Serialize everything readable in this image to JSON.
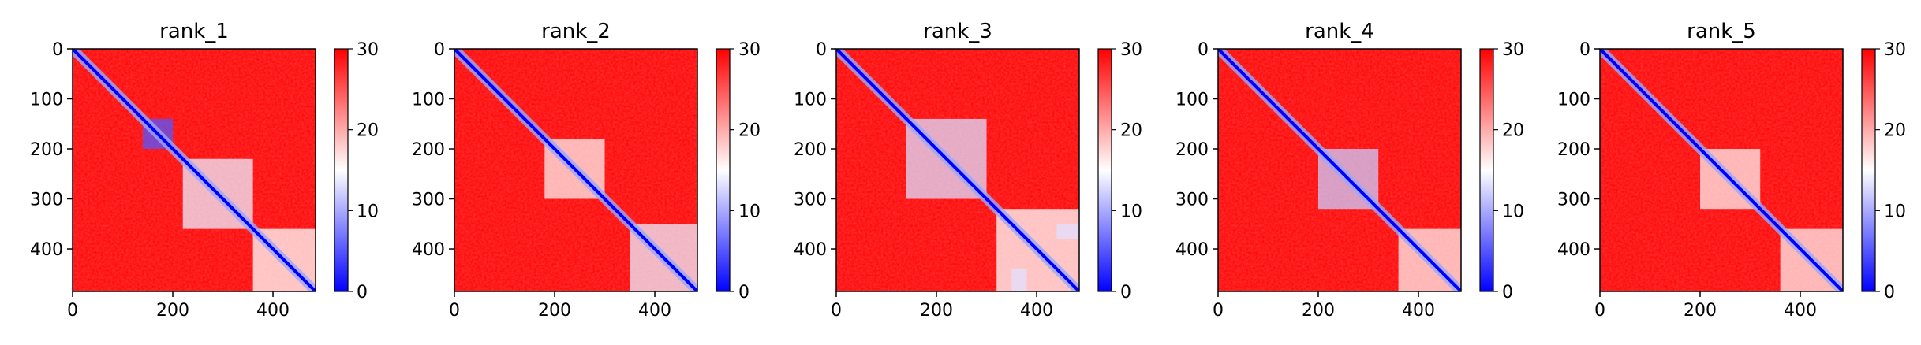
{
  "chart_data": [
    {
      "type": "heatmap",
      "title": "rank_1",
      "x_range": [
        0,
        485
      ],
      "y_range": [
        0,
        485
      ],
      "x_ticks": [
        0,
        200,
        400
      ],
      "y_ticks": [
        0,
        100,
        200,
        300,
        400
      ],
      "colorbar": {
        "range": [
          0,
          30
        ],
        "ticks": [
          0,
          10,
          20,
          30
        ],
        "colors": [
          "#0000ff",
          "#ffffff",
          "#ff0000"
        ]
      },
      "low_regions": [
        {
          "x": [
            140,
            200
          ],
          "y": [
            140,
            200
          ],
          "value": 5
        },
        {
          "x": [
            220,
            360
          ],
          "y": [
            220,
            360
          ],
          "value": 14
        },
        {
          "x": [
            360,
            485
          ],
          "y": [
            360,
            485
          ],
          "value": 15
        }
      ]
    },
    {
      "type": "heatmap",
      "title": "rank_2",
      "x_range": [
        0,
        485
      ],
      "y_range": [
        0,
        485
      ],
      "x_ticks": [
        0,
        200,
        400
      ],
      "y_ticks": [
        0,
        100,
        200,
        300,
        400
      ],
      "colorbar": {
        "range": [
          0,
          30
        ],
        "ticks": [
          0,
          10,
          20,
          30
        ],
        "colors": [
          "#0000ff",
          "#ffffff",
          "#ff0000"
        ]
      },
      "low_regions": [
        {
          "x": [
            180,
            300
          ],
          "y": [
            180,
            300
          ],
          "value": 16
        },
        {
          "x": [
            350,
            485
          ],
          "y": [
            350,
            485
          ],
          "value": 14
        }
      ]
    },
    {
      "type": "heatmap",
      "title": "rank_3",
      "x_range": [
        0,
        485
      ],
      "y_range": [
        0,
        485
      ],
      "x_ticks": [
        0,
        200,
        400
      ],
      "y_ticks": [
        0,
        100,
        200,
        300,
        400
      ],
      "colorbar": {
        "range": [
          0,
          30
        ],
        "ticks": [
          0,
          10,
          20,
          30
        ],
        "colors": [
          "#0000ff",
          "#ffffff",
          "#ff0000"
        ]
      },
      "low_regions": [
        {
          "x": [
            140,
            300
          ],
          "y": [
            140,
            300
          ],
          "value": 13
        },
        {
          "x": [
            440,
            485
          ],
          "y": [
            350,
            380
          ],
          "value": 8
        },
        {
          "x": [
            350,
            380
          ],
          "y": [
            440,
            485
          ],
          "value": 8
        },
        {
          "x": [
            320,
            485
          ],
          "y": [
            320,
            485
          ],
          "value": 15
        }
      ]
    },
    {
      "type": "heatmap",
      "title": "rank_4",
      "x_range": [
        0,
        485
      ],
      "y_range": [
        0,
        485
      ],
      "x_ticks": [
        0,
        200,
        400
      ],
      "y_ticks": [
        0,
        100,
        200,
        300,
        400
      ],
      "colorbar": {
        "range": [
          0,
          30
        ],
        "ticks": [
          0,
          10,
          20,
          30
        ],
        "colors": [
          "#0000ff",
          "#ffffff",
          "#ff0000"
        ]
      },
      "low_regions": [
        {
          "x": [
            200,
            320
          ],
          "y": [
            200,
            320
          ],
          "value": 12
        },
        {
          "x": [
            360,
            485
          ],
          "y": [
            360,
            485
          ],
          "value": 16
        }
      ]
    },
    {
      "type": "heatmap",
      "title": "rank_5",
      "x_range": [
        0,
        485
      ],
      "y_range": [
        0,
        485
      ],
      "x_ticks": [
        0,
        200,
        400
      ],
      "y_ticks": [
        0,
        100,
        200,
        300,
        400
      ],
      "colorbar": {
        "range": [
          0,
          30
        ],
        "ticks": [
          0,
          10,
          20,
          30
        ],
        "colors": [
          "#0000ff",
          "#ffffff",
          "#ff0000"
        ]
      },
      "low_regions": [
        {
          "x": [
            200,
            320
          ],
          "y": [
            200,
            320
          ],
          "value": 16
        },
        {
          "x": [
            360,
            485
          ],
          "y": [
            360,
            485
          ],
          "value": 16
        }
      ]
    }
  ]
}
